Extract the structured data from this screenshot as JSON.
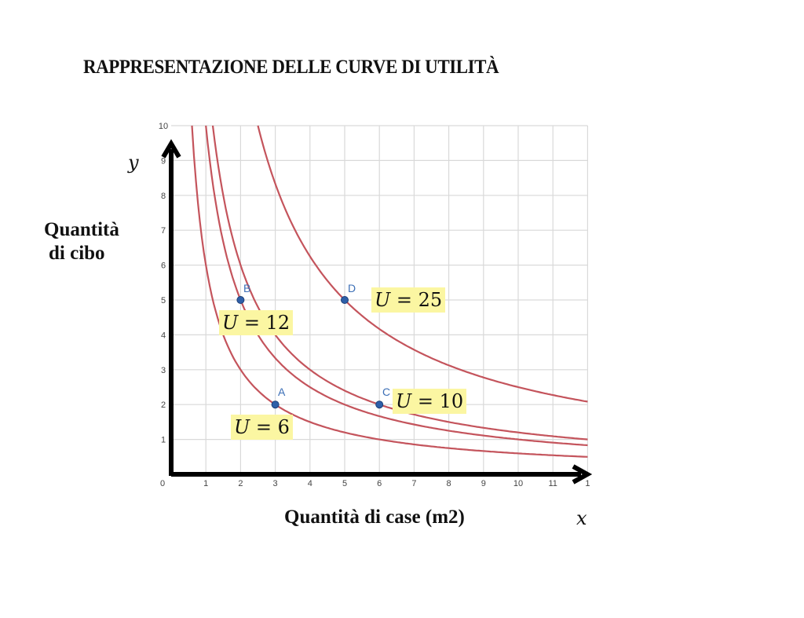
{
  "chart_data": {
    "type": "line",
    "title": "RAPPRESENTAZIONE DELLE CURVE DI UTILITÀ",
    "xlabel": "Quantità di case (m2)",
    "ylabel": "Quantità di cibo",
    "x_var": "x",
    "y_var": "y",
    "xlim": [
      0,
      12
    ],
    "ylim": [
      0,
      10
    ],
    "x_ticks": [
      "0",
      "1",
      "2",
      "3",
      "4",
      "5",
      "6",
      "7",
      "8",
      "9",
      "10",
      "11",
      "1"
    ],
    "y_ticks": [
      "1",
      "2",
      "3",
      "4",
      "5",
      "6",
      "7",
      "8",
      "9",
      "10"
    ],
    "grid": true,
    "series": [
      {
        "name": "U = 6",
        "equation": "x*y = 6",
        "utility": 6,
        "color": "#c4545c"
      },
      {
        "name": "U = 10",
        "equation": "x*y = 10",
        "utility": 10,
        "color": "#c4545c"
      },
      {
        "name": "U = 12",
        "equation": "x*y = 12",
        "utility": 12,
        "color": "#c4545c"
      },
      {
        "name": "U = 25",
        "equation": "x*y = 25",
        "utility": 25,
        "color": "#c4545c"
      }
    ],
    "points": [
      {
        "label": "A",
        "x": 3,
        "y": 2,
        "curve": "U = 6"
      },
      {
        "label": "B",
        "x": 2,
        "y": 5,
        "curve": "U = 10"
      },
      {
        "label": "C",
        "x": 6,
        "y": 2,
        "curve": "U = 12"
      },
      {
        "label": "D",
        "x": 5,
        "y": 5,
        "curve": "U = 25"
      }
    ],
    "annotations": [
      {
        "text": "U = 6",
        "near": "A"
      },
      {
        "text": "U = 12",
        "near": "B"
      },
      {
        "text": "U = 10",
        "near": "C"
      },
      {
        "text": "U = 25",
        "near": "D"
      }
    ]
  },
  "labels": {
    "title": "RAPPRESENTAZIONE DELLE CURVE DI UTILITÀ",
    "ylabel_line1": "Quantità",
    "ylabel_line2": "di cibo",
    "xlabel": "Quantità di case (m2)",
    "x_var": "x",
    "y_var": "y",
    "u6": {
      "u": "U",
      "eq": " = 6"
    },
    "u10": {
      "u": "U",
      "eq": " = 10"
    },
    "u12": {
      "u": "U",
      "eq": " = 12"
    },
    "u25": {
      "u": "U",
      "eq": " = 25"
    },
    "pA": "A",
    "pB": "B",
    "pC": "C",
    "pD": "D"
  },
  "colors": {
    "curve": "#c4545c",
    "point": "#2e5fa8",
    "point_label": "#3c6fb6",
    "highlight": "#fbf6a2",
    "grid": "#d9d9d9",
    "axis": "#000000"
  }
}
